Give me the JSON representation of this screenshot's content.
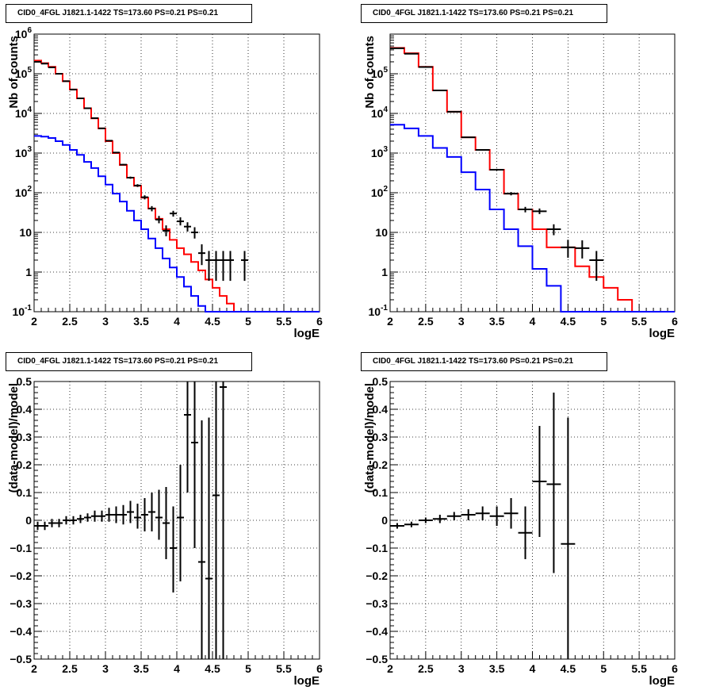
{
  "chart_data": [
    {
      "type": "line",
      "title": "CID0_4FGL J1821.1-1422 TS=173.60 PS=0.21 PS=0.21",
      "xlabel": "logE",
      "ylabel": "Nb of counts",
      "xlim": [
        2,
        6
      ],
      "ylim": [
        0.1,
        1000000
      ],
      "yscale": "log",
      "grid": true,
      "x_ticks": [
        "2",
        "2.5",
        "3",
        "3.5",
        "4",
        "4.5",
        "5",
        "5.5",
        "6"
      ],
      "y_ticks": [
        "10^-1",
        "1",
        "10",
        "10^2",
        "10^3",
        "10^4",
        "10^5",
        "10^6"
      ],
      "bin_edges": [
        2.0,
        2.1,
        2.2,
        2.3,
        2.4,
        2.5,
        2.6,
        2.7,
        2.8,
        2.9,
        3.0,
        3.1,
        3.2,
        3.3,
        3.4,
        3.5,
        3.6,
        3.7,
        3.8,
        3.9,
        4.0,
        4.1,
        4.2,
        4.3,
        4.4,
        4.5,
        4.6,
        4.7,
        4.8,
        4.9,
        5.0,
        5.1,
        5.2,
        5.3,
        5.4,
        5.5,
        5.6,
        5.7,
        5.8,
        5.9,
        6.0
      ],
      "series": [
        {
          "color": "#ff0000",
          "style": "histogram",
          "values": [
            215000,
            185000,
            150000,
            100000,
            65000,
            40000,
            24000,
            13500,
            7500,
            4200,
            2000,
            1000,
            500,
            240,
            150,
            75,
            40,
            22,
            12,
            6.5,
            4,
            2.8,
            1.8,
            1.1,
            0.65,
            0.4,
            0.25,
            0.16,
            0.1,
            0.1,
            0.1,
            0.1,
            0.1,
            0.1,
            0.1,
            0.1,
            0.1,
            0.1,
            0.1,
            0.1
          ]
        },
        {
          "color": "#0000ff",
          "style": "histogram",
          "values": [
            2700,
            2600,
            2400,
            2000,
            1600,
            1200,
            900,
            600,
            420,
            260,
            160,
            95,
            60,
            35,
            20,
            12,
            7,
            4,
            2.2,
            1.3,
            0.75,
            0.43,
            0.25,
            0.14,
            0.1,
            0.1,
            0.1,
            0.1,
            0.1,
            0.1,
            0.1,
            0.1,
            0.1,
            0.1,
            0.1,
            0.1,
            0.1,
            0.1,
            0.1,
            0.1
          ]
        },
        {
          "color": "#000000",
          "style": "errorbar",
          "points": [
            {
              "x": 2.05,
              "y": 200000,
              "lo": 198000,
              "hi": 202000
            },
            {
              "x": 2.15,
              "y": 180000,
              "lo": 178000,
              "hi": 182000
            },
            {
              "x": 2.25,
              "y": 145000,
              "lo": 143500,
              "hi": 146500
            },
            {
              "x": 2.35,
              "y": 100000,
              "lo": 98500,
              "hi": 101500
            },
            {
              "x": 2.45,
              "y": 65000,
              "lo": 64000,
              "hi": 66000
            },
            {
              "x": 2.55,
              "y": 40000,
              "lo": 39500,
              "hi": 40500
            },
            {
              "x": 2.65,
              "y": 24000,
              "lo": 23600,
              "hi": 24400
            },
            {
              "x": 2.75,
              "y": 13500,
              "lo": 13200,
              "hi": 13800
            },
            {
              "x": 2.85,
              "y": 7600,
              "lo": 7400,
              "hi": 7800
            },
            {
              "x": 2.95,
              "y": 4200,
              "lo": 4100,
              "hi": 4300
            },
            {
              "x": 3.05,
              "y": 2050,
              "lo": 2000,
              "hi": 2100
            },
            {
              "x": 3.15,
              "y": 1030,
              "lo": 1000,
              "hi": 1060
            },
            {
              "x": 3.25,
              "y": 510,
              "lo": 490,
              "hi": 530
            },
            {
              "x": 3.35,
              "y": 240,
              "lo": 225,
              "hi": 255
            },
            {
              "x": 3.45,
              "y": 152,
              "lo": 140,
              "hi": 164
            },
            {
              "x": 3.55,
              "y": 77,
              "lo": 68,
              "hi": 86
            },
            {
              "x": 3.65,
              "y": 40,
              "lo": 34,
              "hi": 46
            },
            {
              "x": 3.75,
              "y": 21,
              "lo": 17,
              "hi": 26
            },
            {
              "x": 3.85,
              "y": 11,
              "lo": 8,
              "hi": 15
            },
            {
              "x": 3.95,
              "y": 30,
              "lo": 25,
              "hi": 35
            },
            {
              "x": 4.05,
              "y": 19,
              "lo": 15,
              "hi": 24
            },
            {
              "x": 4.15,
              "y": 14,
              "lo": 10.5,
              "hi": 18
            },
            {
              "x": 4.25,
              "y": 10,
              "lo": 7,
              "hi": 13.5
            },
            {
              "x": 4.35,
              "y": 3,
              "lo": 1.5,
              "hi": 5
            },
            {
              "x": 4.45,
              "y": 2,
              "lo": 0.6,
              "hi": 3.4
            },
            {
              "x": 4.55,
              "y": 2,
              "lo": 0.6,
              "hi": 3.4
            },
            {
              "x": 4.65,
              "y": 2,
              "lo": 0.6,
              "hi": 3.4
            },
            {
              "x": 4.75,
              "y": 2,
              "lo": 0.6,
              "hi": 3.4
            },
            {
              "x": 4.95,
              "y": 2,
              "lo": 0.6,
              "hi": 3.4
            }
          ]
        }
      ]
    },
    {
      "type": "line",
      "title": "CID0_4FGL J1821.1-1422 TS=173.60 PS=0.21 PS=0.21",
      "xlabel": "logE",
      "ylabel": "Nb of counts",
      "xlim": [
        2,
        6
      ],
      "ylim": [
        0.1,
        1000000
      ],
      "yscale": "log",
      "grid": true,
      "x_ticks": [
        "2",
        "2.5",
        "3",
        "3.5",
        "4",
        "4.5",
        "5",
        "5.5",
        "6"
      ],
      "y_ticks": [
        "10^-1",
        "1",
        "10",
        "10^2",
        "10^3",
        "10^4",
        "10^5"
      ],
      "bin_edges": [
        2.0,
        2.2,
        2.4,
        2.6,
        2.8,
        3.0,
        3.2,
        3.4,
        3.6,
        3.8,
        4.0,
        4.2,
        4.4,
        4.6,
        4.8,
        5.0,
        5.2,
        5.4,
        5.6,
        5.8,
        6.0
      ],
      "series": [
        {
          "color": "#ff0000",
          "style": "histogram",
          "values": [
            450000,
            330000,
            150000,
            38000,
            11000,
            2500,
            1200,
            380,
            95,
            38,
            12,
            4.2,
            4.2,
            1.4,
            0.75,
            0.4,
            0.2,
            0.1,
            0.1,
            0.1
          ]
        },
        {
          "color": "#0000ff",
          "style": "histogram",
          "values": [
            5200,
            4200,
            2700,
            1350,
            800,
            330,
            120,
            38,
            12,
            4.5,
            1.2,
            0.45,
            0.1,
            0.1,
            0.1,
            0.1,
            0.1,
            0.1,
            0.1,
            0.1
          ]
        },
        {
          "color": "#000000",
          "style": "errorbar",
          "points": [
            {
              "x": 2.1,
              "y": 440000,
              "lo": 437000,
              "hi": 443000
            },
            {
              "x": 2.3,
              "y": 320000,
              "lo": 318000,
              "hi": 322000
            },
            {
              "x": 2.5,
              "y": 148000,
              "lo": 147000,
              "hi": 149000
            },
            {
              "x": 2.7,
              "y": 38000,
              "lo": 37500,
              "hi": 38500
            },
            {
              "x": 2.9,
              "y": 11000,
              "lo": 10800,
              "hi": 11200
            },
            {
              "x": 3.1,
              "y": 2500,
              "lo": 2450,
              "hi": 2550
            },
            {
              "x": 3.3,
              "y": 1200,
              "lo": 1160,
              "hi": 1240
            },
            {
              "x": 3.5,
              "y": 380,
              "lo": 360,
              "hi": 400
            },
            {
              "x": 3.7,
              "y": 95,
              "lo": 86,
              "hi": 104
            },
            {
              "x": 3.9,
              "y": 38,
              "lo": 32,
              "hi": 44
            },
            {
              "x": 4.1,
              "y": 34,
              "lo": 29,
              "hi": 40
            },
            {
              "x": 4.3,
              "y": 12,
              "lo": 8.5,
              "hi": 16
            },
            {
              "x": 4.5,
              "y": 4.2,
              "lo": 2.3,
              "hi": 6.5
            },
            {
              "x": 4.7,
              "y": 4,
              "lo": 2.2,
              "hi": 6.3
            },
            {
              "x": 4.9,
              "y": 2,
              "lo": 0.6,
              "hi": 3.4
            }
          ]
        }
      ]
    },
    {
      "type": "scatter",
      "title": "CID0_4FGL J1821.1-1422 TS=173.60 PS=0.21 PS=0.21",
      "xlabel": "logE",
      "ylabel": "(data-model)/model",
      "xlim": [
        2,
        6
      ],
      "ylim": [
        -0.5,
        0.5
      ],
      "grid": true,
      "x_ticks": [
        "2",
        "2.5",
        "3",
        "3.5",
        "4",
        "4.5",
        "5",
        "5.5",
        "6"
      ],
      "y_ticks": [
        "-0.5",
        "-0.4",
        "-0.3",
        "-0.2",
        "-0.1",
        "0",
        "0.1",
        "0.2",
        "0.3",
        "0.4",
        "0.5"
      ],
      "series": [
        {
          "color": "#000000",
          "style": "errorbar",
          "points": [
            {
              "x": 2.05,
              "y": -0.02,
              "lo": -0.035,
              "hi": -0.005
            },
            {
              "x": 2.15,
              "y": -0.02,
              "lo": -0.035,
              "hi": -0.005
            },
            {
              "x": 2.25,
              "y": -0.01,
              "lo": -0.025,
              "hi": 0.005
            },
            {
              "x": 2.35,
              "y": -0.01,
              "lo": -0.025,
              "hi": 0.005
            },
            {
              "x": 2.45,
              "y": 0.0,
              "lo": -0.015,
              "hi": 0.015
            },
            {
              "x": 2.55,
              "y": 0.0,
              "lo": -0.015,
              "hi": 0.015
            },
            {
              "x": 2.65,
              "y": 0.005,
              "lo": -0.01,
              "hi": 0.02
            },
            {
              "x": 2.75,
              "y": 0.01,
              "lo": -0.005,
              "hi": 0.025
            },
            {
              "x": 2.85,
              "y": 0.015,
              "lo": -0.005,
              "hi": 0.035
            },
            {
              "x": 2.95,
              "y": 0.015,
              "lo": -0.005,
              "hi": 0.035
            },
            {
              "x": 3.05,
              "y": 0.02,
              "lo": -0.005,
              "hi": 0.045
            },
            {
              "x": 3.15,
              "y": 0.02,
              "lo": -0.01,
              "hi": 0.05
            },
            {
              "x": 3.25,
              "y": 0.02,
              "lo": -0.015,
              "hi": 0.055
            },
            {
              "x": 3.35,
              "y": 0.03,
              "lo": -0.01,
              "hi": 0.07
            },
            {
              "x": 3.45,
              "y": 0.01,
              "lo": -0.03,
              "hi": 0.06
            },
            {
              "x": 3.55,
              "y": 0.02,
              "lo": -0.04,
              "hi": 0.08
            },
            {
              "x": 3.65,
              "y": 0.03,
              "lo": -0.04,
              "hi": 0.1
            },
            {
              "x": 3.75,
              "y": 0.01,
              "lo": -0.07,
              "hi": 0.11
            },
            {
              "x": 3.85,
              "y": -0.01,
              "lo": -0.14,
              "hi": 0.12
            },
            {
              "x": 3.95,
              "y": -0.1,
              "lo": -0.26,
              "hi": 0.05
            },
            {
              "x": 4.05,
              "y": 0.01,
              "lo": -0.22,
              "hi": 0.2
            },
            {
              "x": 4.15,
              "y": 0.38,
              "lo": 0.1,
              "hi": 0.5
            },
            {
              "x": 4.25,
              "y": 0.28,
              "lo": -0.1,
              "hi": 0.5
            },
            {
              "x": 4.35,
              "y": -0.15,
              "lo": -0.5,
              "hi": 0.36
            },
            {
              "x": 4.45,
              "y": -0.21,
              "lo": -0.5,
              "hi": 0.37
            },
            {
              "x": 4.55,
              "y": 0.09,
              "lo": -0.5,
              "hi": 0.5
            },
            {
              "x": 4.65,
              "y": 0.48,
              "lo": -0.5,
              "hi": 0.5
            }
          ]
        }
      ]
    },
    {
      "type": "scatter",
      "title": "CID0_4FGL J1821.1-1422 TS=173.60 PS=0.21 PS=0.21",
      "xlabel": "logE",
      "ylabel": "(data-model)/model",
      "xlim": [
        2,
        6
      ],
      "ylim": [
        -0.5,
        0.5
      ],
      "grid": true,
      "x_ticks": [
        "2",
        "2.5",
        "3",
        "3.5",
        "4",
        "4.5",
        "5",
        "5.5",
        "6"
      ],
      "y_ticks": [
        "-0.5",
        "-0.4",
        "-0.3",
        "-0.2",
        "-0.1",
        "0",
        "0.1",
        "0.2",
        "0.3",
        "0.4",
        "0.5"
      ],
      "series": [
        {
          "color": "#000000",
          "style": "errorbar",
          "points": [
            {
              "x": 2.1,
              "y": -0.02,
              "lo": -0.03,
              "hi": -0.01
            },
            {
              "x": 2.3,
              "y": -0.015,
              "lo": -0.025,
              "hi": -0.005
            },
            {
              "x": 2.5,
              "y": 0.0,
              "lo": -0.01,
              "hi": 0.01
            },
            {
              "x": 2.7,
              "y": 0.005,
              "lo": -0.01,
              "hi": 0.02
            },
            {
              "x": 2.9,
              "y": 0.015,
              "lo": 0.0,
              "hi": 0.03
            },
            {
              "x": 3.1,
              "y": 0.02,
              "lo": 0.0,
              "hi": 0.04
            },
            {
              "x": 3.3,
              "y": 0.025,
              "lo": 0.0,
              "hi": 0.05
            },
            {
              "x": 3.5,
              "y": 0.015,
              "lo": -0.02,
              "hi": 0.05
            },
            {
              "x": 3.7,
              "y": 0.025,
              "lo": -0.03,
              "hi": 0.08
            },
            {
              "x": 3.9,
              "y": -0.045,
              "lo": -0.14,
              "hi": 0.05
            },
            {
              "x": 4.1,
              "y": 0.14,
              "lo": -0.06,
              "hi": 0.34
            },
            {
              "x": 4.3,
              "y": 0.13,
              "lo": -0.19,
              "hi": 0.46
            },
            {
              "x": 4.5,
              "y": -0.085,
              "lo": -0.5,
              "hi": 0.37
            }
          ]
        }
      ]
    }
  ]
}
